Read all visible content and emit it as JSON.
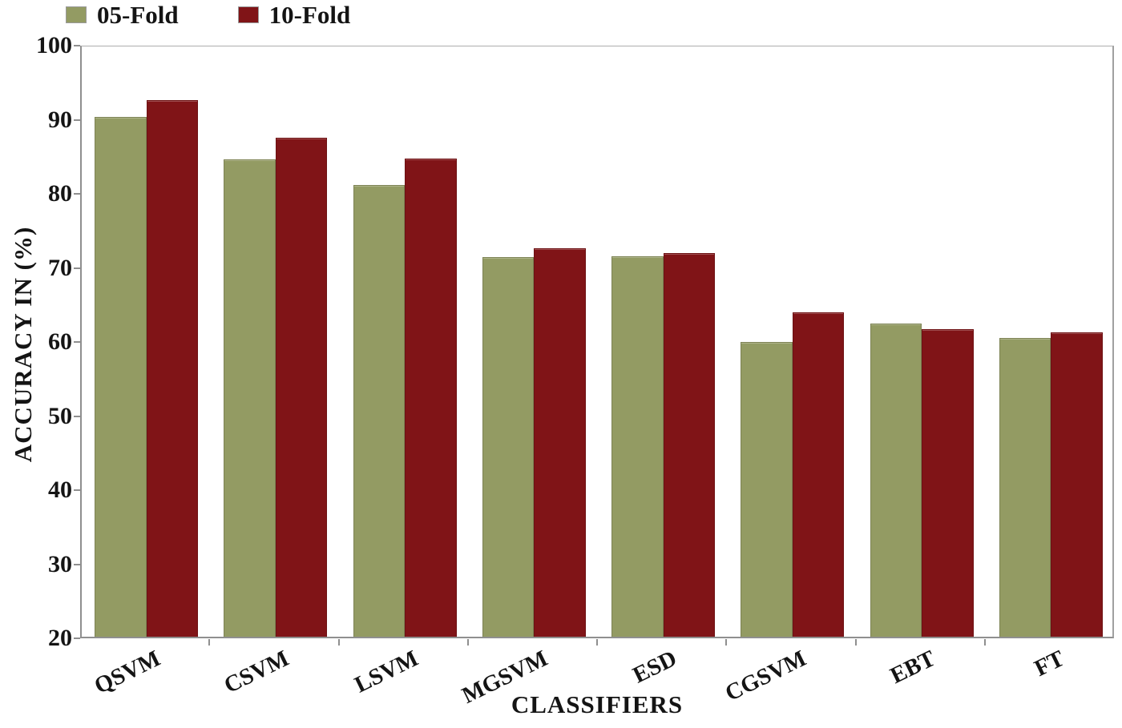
{
  "legend": {
    "items": [
      {
        "label": "05-Fold",
        "color": "#939B63"
      },
      {
        "label": "10-Fold",
        "color": "#801417"
      }
    ]
  },
  "chart_data": {
    "type": "bar",
    "title": "",
    "xlabel": "CLASSIFIERS",
    "ylabel": "ACCURACY IN (%)",
    "categories": [
      "QSVM",
      "CSVM",
      "LSVM",
      "MGSVM",
      "ESD",
      "CGSVM",
      "EBT",
      "FT"
    ],
    "series": [
      {
        "name": "05-Fold",
        "color": "#939B63",
        "values": [
          90.5,
          84.7,
          81.2,
          71.5,
          71.6,
          60.0,
          62.4,
          60.5
        ]
      },
      {
        "name": "10-Fold",
        "color": "#801417",
        "values": [
          92.7,
          87.6,
          84.8,
          72.7,
          72.0,
          64.0,
          61.7,
          61.2
        ]
      }
    ],
    "ylim": [
      20,
      100
    ],
    "yticks": [
      20,
      30,
      40,
      50,
      60,
      70,
      80,
      90,
      100
    ],
    "grid": false,
    "legend_position": "top-left",
    "bar_group_width_fraction": 0.8
  }
}
